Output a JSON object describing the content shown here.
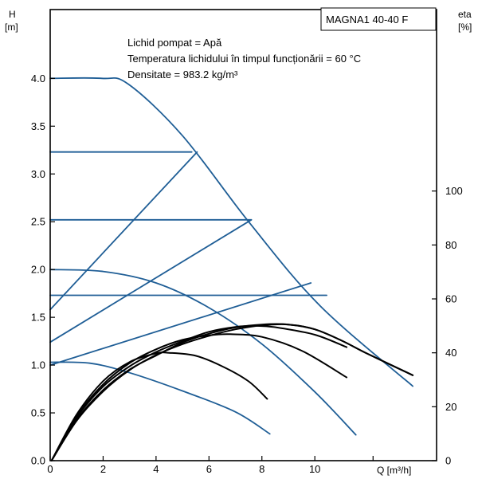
{
  "chart_data": {
    "type": "line",
    "title": "MAGNA1 40-40 F",
    "annotations": [
      "Lichid pompat = Apă",
      "Temperatura lichidului în timpul funcționării = 60 °C",
      "Densitate = 983.2 kg/m³"
    ],
    "xlabel": "Q [m³/h]",
    "ylabel_left": [
      "H",
      "[m]"
    ],
    "ylabel_right": [
      "eta",
      "[%]"
    ],
    "xlim": [
      0,
      14.6
    ],
    "ylim_left": [
      0,
      4.72
    ],
    "ylim_right": [
      0,
      167.3
    ],
    "x_ticks": [
      "0",
      "2",
      "4",
      "6",
      "8",
      "10"
    ],
    "y_left_ticks": [
      "0.0",
      "0.5",
      "1.0",
      "1.5",
      "2.0",
      "2.5",
      "3.0",
      "3.5",
      "4.0"
    ],
    "y_right_ticks": [
      "0",
      "20",
      "40",
      "60",
      "80",
      "100"
    ],
    "colors": {
      "head": "#1f5e96",
      "efficiency": "#000000",
      "frame": "#000000"
    },
    "series": [
      {
        "kind": "head",
        "axis": "left",
        "points": [
          [
            0,
            4.0
          ],
          [
            1.95,
            4.0
          ],
          [
            2.95,
            3.94
          ],
          [
            5.0,
            3.4
          ],
          [
            7.5,
            2.5
          ],
          [
            10.2,
            1.62
          ],
          [
            13.7,
            0.78
          ]
        ]
      },
      {
        "kind": "head",
        "axis": "left",
        "points": [
          [
            0,
            3.23
          ],
          [
            5.35,
            3.23
          ]
        ]
      },
      {
        "kind": "head",
        "axis": "left",
        "points": [
          [
            0,
            2.52
          ],
          [
            7.6,
            2.52
          ]
        ]
      },
      {
        "kind": "head",
        "axis": "left",
        "points": [
          [
            0,
            1.73
          ],
          [
            10.45,
            1.73
          ]
        ]
      },
      {
        "kind": "head",
        "axis": "left",
        "points": [
          [
            0,
            1.58
          ],
          [
            5.55,
            3.23
          ]
        ]
      },
      {
        "kind": "head",
        "axis": "left",
        "points": [
          [
            0,
            1.24
          ],
          [
            7.6,
            2.52
          ]
        ]
      },
      {
        "kind": "head",
        "axis": "left",
        "points": [
          [
            0,
            1.0
          ],
          [
            9.85,
            1.86
          ]
        ]
      },
      {
        "kind": "head",
        "axis": "left",
        "points": [
          [
            0,
            2.0
          ],
          [
            2.0,
            1.98
          ],
          [
            4.0,
            1.86
          ],
          [
            6.0,
            1.6
          ],
          [
            8.0,
            1.22
          ],
          [
            10.0,
            0.72
          ],
          [
            11.55,
            0.27
          ]
        ]
      },
      {
        "kind": "head",
        "axis": "left",
        "points": [
          [
            0,
            1.03
          ],
          [
            1.5,
            1.02
          ],
          [
            3.0,
            0.92
          ],
          [
            5.0,
            0.73
          ],
          [
            7.0,
            0.51
          ],
          [
            8.3,
            0.28
          ]
        ]
      },
      {
        "kind": "efficiency",
        "axis": "right",
        "points": [
          [
            0.05,
            0
          ],
          [
            1,
            14.8
          ],
          [
            2,
            25.7
          ],
          [
            3,
            33.6
          ],
          [
            4,
            39.2
          ],
          [
            5,
            43.2
          ],
          [
            6,
            46.3
          ],
          [
            7,
            48.7
          ],
          [
            8,
            50.2
          ],
          [
            9,
            50.5
          ],
          [
            10,
            48.7
          ],
          [
            11,
            44.6
          ],
          [
            12,
            39.6
          ],
          [
            13.7,
            31.7
          ]
        ]
      },
      {
        "kind": "efficiency",
        "axis": "right",
        "points": [
          [
            0.05,
            0
          ],
          [
            1,
            15.2
          ],
          [
            2,
            26.2
          ],
          [
            3,
            33.8
          ],
          [
            4,
            39.0
          ],
          [
            5,
            43.8
          ],
          [
            6,
            47.1
          ],
          [
            7,
            49.4
          ],
          [
            8,
            50.5
          ],
          [
            9,
            50.5
          ],
          [
            10,
            48.7
          ],
          [
            11,
            44.6
          ],
          [
            12,
            39.6
          ],
          [
            13.7,
            31.7
          ]
        ]
      },
      {
        "kind": "efficiency",
        "axis": "right",
        "points": [
          [
            0.05,
            0
          ],
          [
            1,
            16.0
          ],
          [
            2,
            27.5
          ],
          [
            3,
            35.0
          ],
          [
            4,
            40.3
          ],
          [
            5,
            44.3
          ],
          [
            6,
            47.8
          ],
          [
            7,
            49.6
          ],
          [
            7.75,
            50.0
          ],
          [
            8.5,
            49.5
          ],
          [
            10,
            46.7
          ],
          [
            11.2,
            42.1
          ]
        ]
      },
      {
        "kind": "efficiency",
        "axis": "right",
        "points": [
          [
            0.05,
            0
          ],
          [
            1,
            16.5
          ],
          [
            2,
            28.3
          ],
          [
            3,
            36.2
          ],
          [
            4,
            41.3
          ],
          [
            5,
            44.8
          ],
          [
            6,
            46.5
          ],
          [
            6.8,
            46.9
          ],
          [
            8,
            45.9
          ],
          [
            9.5,
            40.8
          ],
          [
            11.2,
            30.9
          ]
        ]
      },
      {
        "kind": "efficiency",
        "axis": "right",
        "points": [
          [
            0.05,
            0
          ],
          [
            1,
            17.1
          ],
          [
            2,
            29.5
          ],
          [
            3,
            36.6
          ],
          [
            4,
            39.8
          ],
          [
            4.5,
            40.0
          ],
          [
            5.5,
            38.9
          ],
          [
            6.5,
            35.0
          ],
          [
            7.5,
            29.4
          ],
          [
            8.2,
            22.9
          ]
        ]
      }
    ]
  }
}
